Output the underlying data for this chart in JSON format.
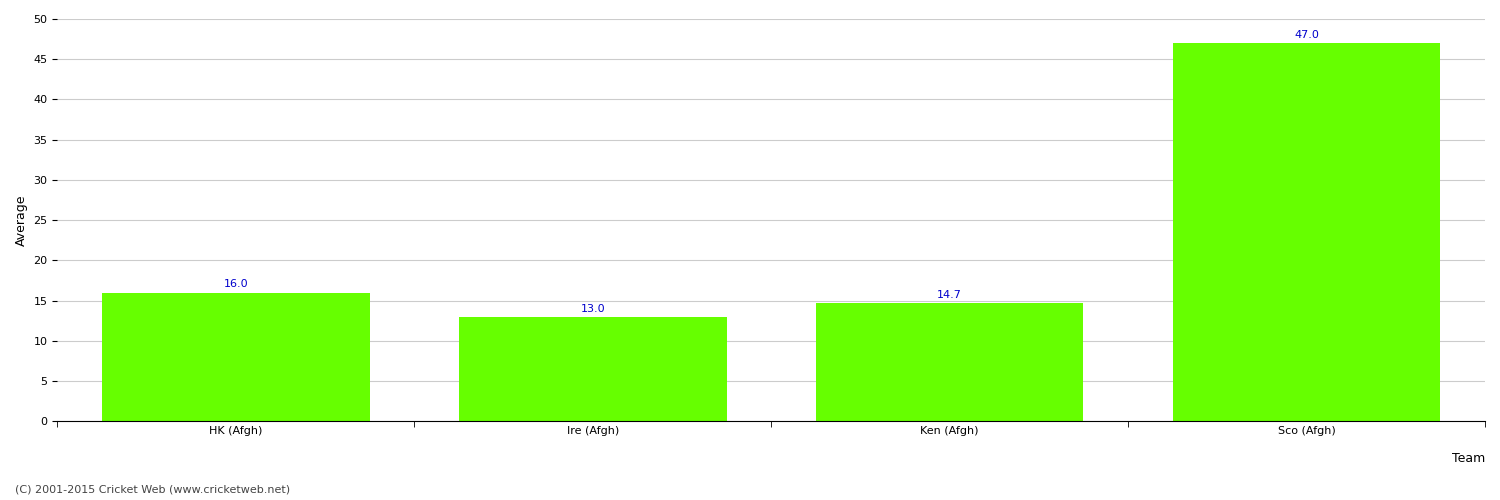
{
  "categories": [
    "HK (Afgh)",
    "Ire (Afgh)",
    "Ken (Afgh)",
    "Sco (Afgh)"
  ],
  "values": [
    16.0,
    13.0,
    14.7,
    47.0
  ],
  "bar_color": "#66ff00",
  "bar_edge_color": "#66ff00",
  "title": "",
  "xlabel": "Team",
  "ylabel": "Average",
  "ylim": [
    0,
    50
  ],
  "yticks": [
    0,
    5,
    10,
    15,
    20,
    25,
    30,
    35,
    40,
    45,
    50
  ],
  "label_color": "#0000cc",
  "label_fontsize": 8,
  "axis_label_fontsize": 9,
  "tick_fontsize": 8,
  "background_color": "#ffffff",
  "grid_color": "#cccccc",
  "footer_text": "(C) 2001-2015 Cricket Web (www.cricketweb.net)",
  "footer_fontsize": 8,
  "footer_color": "#444444"
}
